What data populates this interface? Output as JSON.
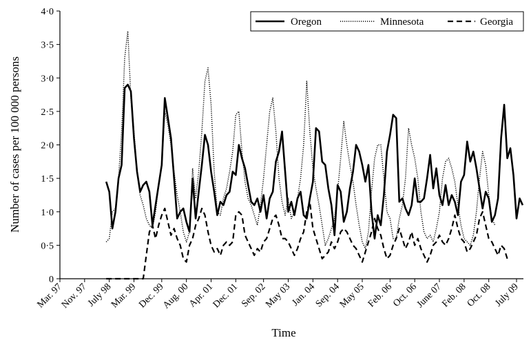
{
  "chart_data": {
    "type": "line",
    "title": "",
    "xlabel": "Time",
    "ylabel": "Number of cases per 100 000 persons",
    "ylim": [
      0,
      4
    ],
    "y_ticks": [
      "0",
      "0·5",
      "1·0",
      "1·5",
      "2·0",
      "2·5",
      "3·0",
      "3·5",
      "4·0"
    ],
    "x_tick_labels": [
      "Mar. 97",
      "Nov. 97",
      "July 98",
      "Mar. 99",
      "Dec. 99",
      "Aug. 00",
      "Apr. 01",
      "Dec. 01",
      "Sep. 02",
      "May 03",
      "Jan. 04",
      "Sep. 04",
      "May 05",
      "Feb. 06",
      "Oct. 06",
      "June 07",
      "Feb. 08",
      "Oct. 08",
      "July 09"
    ],
    "x_range": [
      "Mar. 97",
      "July 09"
    ],
    "grid": false,
    "legend_position": "top-right",
    "colors": {
      "line": "#000000",
      "background": "#ffffff"
    },
    "series": [
      {
        "name": "Oregon",
        "line_style": "solid",
        "start": "1998-06",
        "values": [
          1.45,
          1.3,
          0.75,
          1.0,
          1.5,
          1.7,
          2.85,
          2.9,
          2.8,
          2.1,
          1.6,
          1.3,
          1.4,
          1.45,
          1.3,
          0.8,
          1.1,
          1.4,
          1.7,
          2.7,
          2.4,
          2.1,
          1.5,
          0.9,
          1.0,
          1.05,
          0.85,
          0.7,
          1.5,
          0.9,
          1.3,
          1.7,
          2.15,
          2.0,
          1.6,
          1.3,
          0.95,
          1.15,
          1.1,
          1.25,
          1.3,
          1.6,
          1.55,
          2.0,
          1.8,
          1.65,
          1.4,
          1.15,
          1.1,
          1.2,
          1.0,
          1.25,
          0.9,
          1.2,
          1.3,
          1.75,
          1.9,
          2.2,
          1.6,
          1.0,
          1.15,
          0.95,
          1.2,
          1.3,
          0.95,
          0.9,
          1.2,
          1.45,
          2.25,
          2.2,
          1.75,
          1.7,
          1.35,
          1.1,
          0.65,
          1.4,
          1.3,
          0.85,
          1.0,
          1.35,
          1.6,
          2.0,
          1.9,
          1.7,
          1.45,
          1.7,
          1.0,
          0.6,
          0.95,
          0.8,
          1.25,
          1.9,
          2.15,
          2.45,
          2.4,
          1.15,
          1.2,
          1.05,
          0.95,
          1.1,
          1.5,
          1.15,
          1.15,
          1.2,
          1.5,
          1.85,
          1.35,
          1.65,
          1.25,
          1.1,
          1.4,
          1.1,
          1.25,
          1.15,
          0.95,
          1.45,
          1.55,
          2.05,
          1.75,
          1.9,
          1.65,
          1.35,
          1.05,
          1.3,
          1.2,
          0.85,
          0.95,
          1.2,
          2.1,
          2.6,
          1.8,
          1.95,
          1.55,
          0.9,
          1.2,
          1.1
        ]
      },
      {
        "name": "Minnesota",
        "line_style": "dotted",
        "start": "1998-06",
        "values": [
          0.55,
          0.6,
          1.0,
          1.05,
          1.5,
          2.2,
          3.3,
          3.7,
          2.7,
          2.2,
          1.6,
          1.25,
          1.1,
          0.9,
          0.8,
          0.75,
          1.0,
          1.4,
          1.7,
          2.5,
          2.3,
          2.0,
          1.6,
          1.25,
          1.0,
          0.7,
          0.55,
          0.7,
          1.65,
          1.2,
          1.6,
          2.2,
          2.95,
          3.15,
          2.6,
          1.6,
          1.0,
          0.95,
          1.2,
          1.35,
          1.6,
          1.9,
          2.45,
          2.5,
          1.9,
          1.45,
          1.2,
          1.1,
          0.95,
          0.8,
          1.1,
          1.5,
          2.0,
          2.5,
          2.7,
          2.2,
          1.5,
          1.15,
          0.95,
          1.2,
          0.9,
          1.0,
          1.2,
          1.5,
          2.0,
          2.95,
          2.2,
          1.65,
          1.35,
          1.1,
          0.8,
          0.5,
          0.6,
          0.75,
          0.9,
          1.3,
          1.8,
          2.35,
          2.0,
          1.7,
          1.45,
          1.1,
          0.8,
          0.55,
          0.45,
          0.7,
          1.3,
          1.8,
          2.0,
          2.0,
          1.5,
          1.0,
          0.9,
          0.6,
          0.6,
          0.9,
          1.1,
          1.5,
          2.25,
          2.0,
          1.8,
          1.5,
          1.0,
          0.7,
          0.6,
          0.65,
          0.55,
          0.75,
          1.0,
          1.5,
          1.75,
          1.8,
          1.65,
          1.45,
          1.1,
          0.8,
          0.6,
          0.55,
          0.5,
          0.65,
          1.0,
          1.5,
          1.9,
          1.7,
          1.25,
          0.9,
          0.8
        ]
      },
      {
        "name": "Georgia",
        "line_style": "dashed",
        "start": "1998-06",
        "values": [
          0.0,
          0.0,
          0.0,
          0.0,
          0.0,
          0.0,
          0.0,
          0.0,
          0.0,
          0.0,
          0.0,
          0.0,
          0.0,
          0.35,
          0.7,
          0.8,
          0.6,
          0.8,
          0.95,
          1.05,
          0.85,
          0.65,
          0.75,
          0.6,
          0.5,
          0.3,
          0.25,
          0.5,
          0.6,
          0.8,
          0.9,
          1.05,
          0.95,
          0.7,
          0.5,
          0.4,
          0.45,
          0.35,
          0.5,
          0.55,
          0.5,
          0.55,
          0.95,
          1.0,
          0.95,
          0.65,
          0.55,
          0.45,
          0.35,
          0.45,
          0.4,
          0.55,
          0.6,
          0.75,
          0.9,
          0.95,
          0.8,
          0.6,
          0.6,
          0.55,
          0.45,
          0.35,
          0.45,
          0.6,
          0.7,
          1.0,
          1.15,
          0.75,
          0.6,
          0.45,
          0.3,
          0.35,
          0.4,
          0.55,
          0.45,
          0.55,
          0.7,
          0.75,
          0.7,
          0.6,
          0.5,
          0.45,
          0.35,
          0.25,
          0.4,
          0.55,
          0.7,
          0.9,
          0.75,
          0.65,
          0.45,
          0.3,
          0.35,
          0.5,
          0.6,
          0.75,
          0.6,
          0.45,
          0.55,
          0.7,
          0.5,
          0.6,
          0.45,
          0.35,
          0.25,
          0.35,
          0.5,
          0.55,
          0.65,
          0.55,
          0.5,
          0.6,
          0.75,
          0.95,
          0.75,
          0.6,
          0.55,
          0.4,
          0.45,
          0.55,
          0.65,
          0.9,
          1.0,
          0.8,
          0.6,
          0.55,
          0.45,
          0.35,
          0.5,
          0.45,
          0.3
        ]
      }
    ]
  }
}
